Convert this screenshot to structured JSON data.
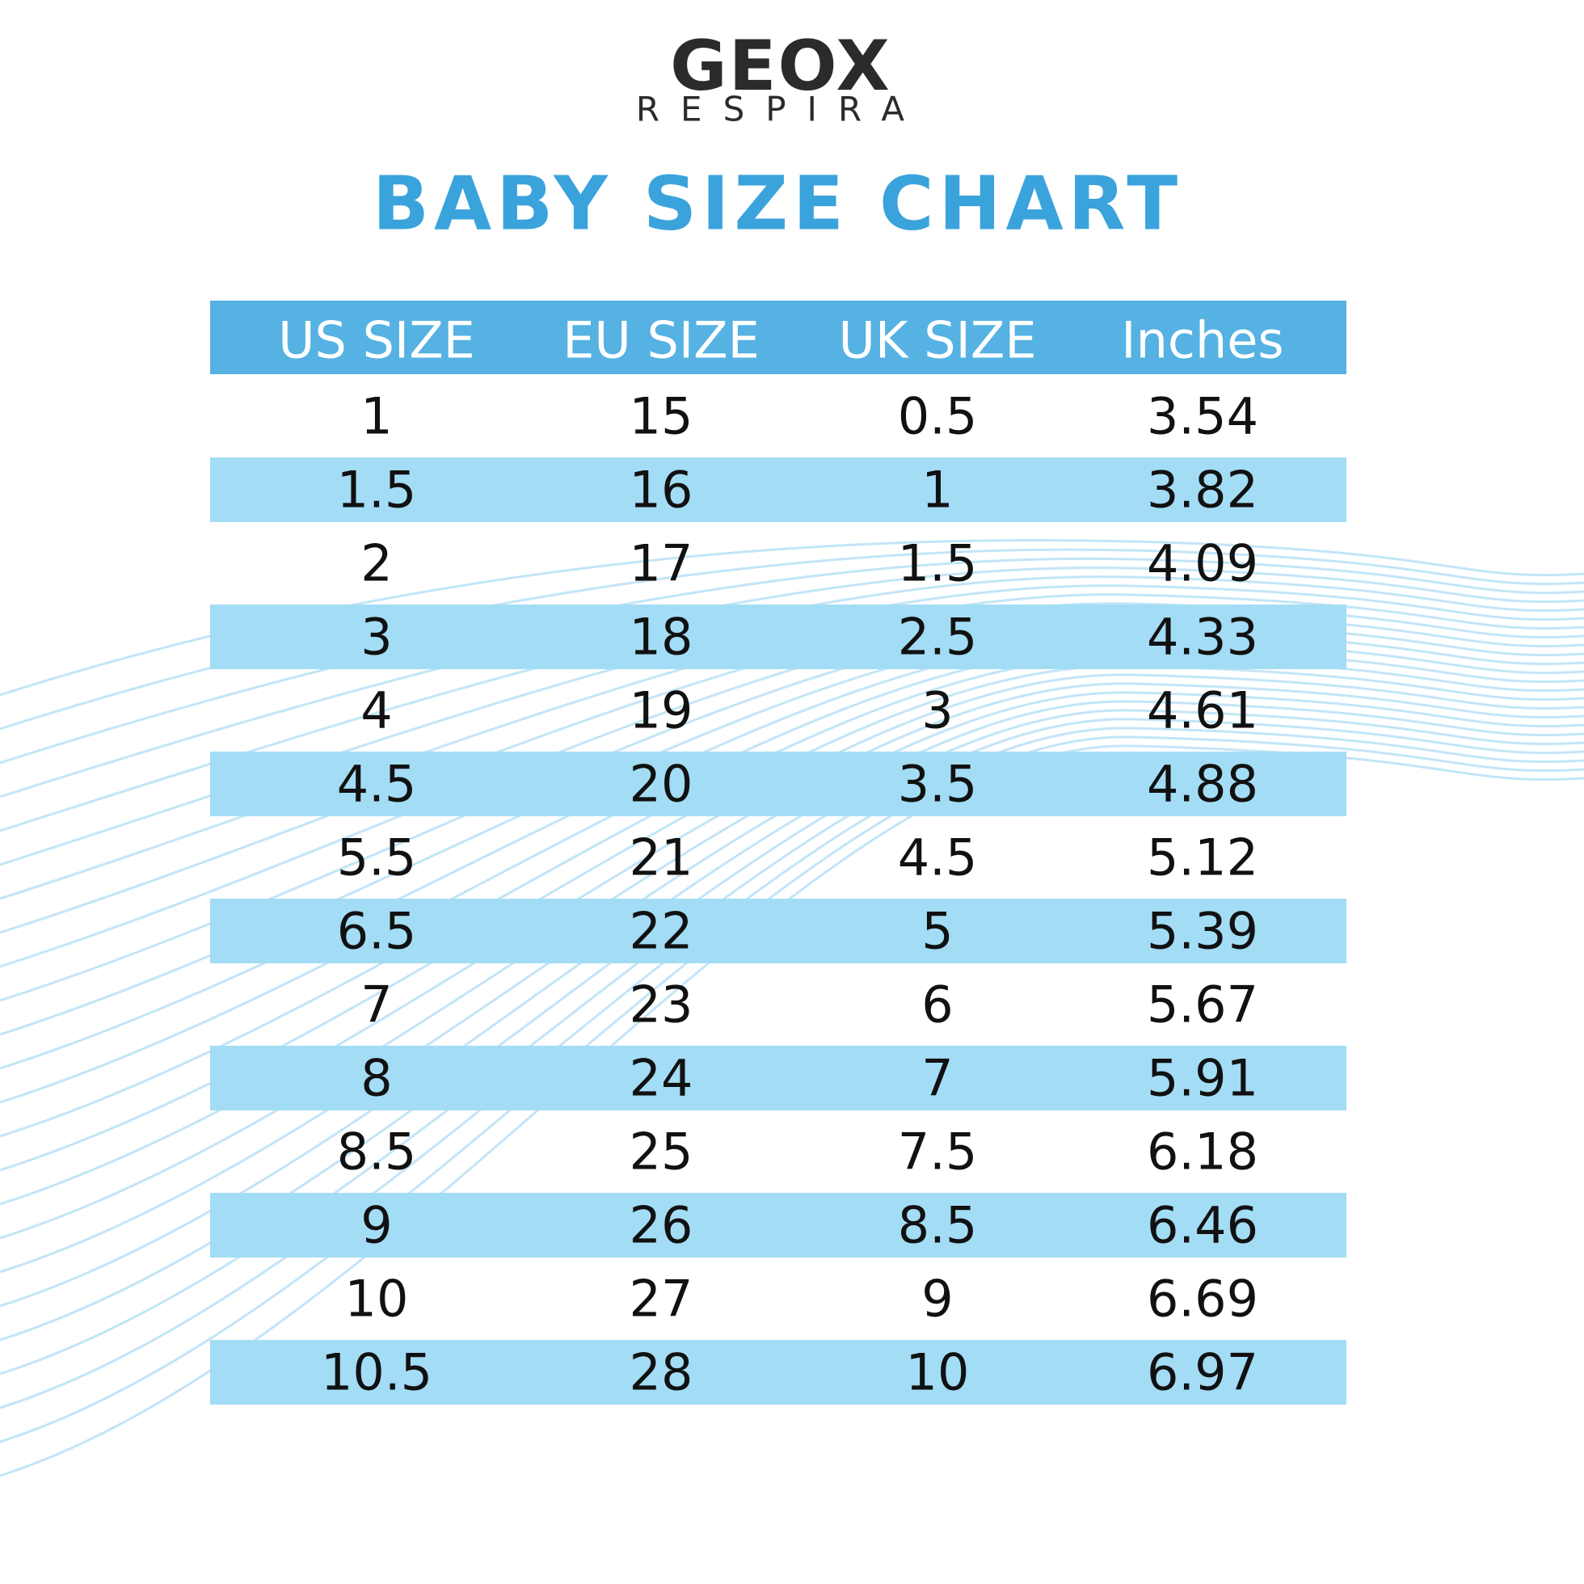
{
  "header": {
    "logo": "GEOX",
    "subtitle": "RESPIRA"
  },
  "title": "BABY SIZE CHART",
  "table": {
    "columns": [
      "US SIZE",
      "EU SIZE",
      "UK SIZE",
      "Inches"
    ],
    "rows": [
      [
        "1",
        "15",
        "0.5",
        "3.54"
      ],
      [
        "1.5",
        "16",
        "1",
        "3.82"
      ],
      [
        "2",
        "17",
        "1.5",
        "4.09"
      ],
      [
        "3",
        "18",
        "2.5",
        "4.33"
      ],
      [
        "4",
        "19",
        "3",
        "4.61"
      ],
      [
        "4.5",
        "20",
        "3.5",
        "4.88"
      ],
      [
        "5.5",
        "21",
        "4.5",
        "5.12"
      ],
      [
        "6.5",
        "22",
        "5",
        "5.39"
      ],
      [
        "7",
        "23",
        "6",
        "5.67"
      ],
      [
        "8",
        "24",
        "7",
        "5.91"
      ],
      [
        "8.5",
        "25",
        "7.5",
        "6.18"
      ],
      [
        "9",
        "26",
        "8.5",
        "6.46"
      ],
      [
        "10",
        "27",
        "9",
        "6.69"
      ],
      [
        "10.5",
        "28",
        "10",
        "6.97"
      ]
    ]
  }
}
